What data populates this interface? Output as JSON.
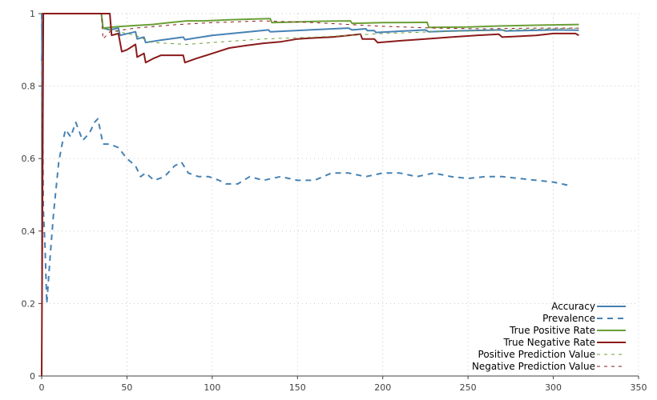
{
  "chart_data": {
    "type": "line",
    "title": "",
    "xlabel": "",
    "ylabel": "",
    "xlim": [
      0,
      350
    ],
    "ylim": [
      0,
      1
    ],
    "x_ticks": [
      "0",
      "50",
      "100",
      "150",
      "200",
      "250",
      "300",
      "350"
    ],
    "y_ticks": [
      "0",
      "0.2",
      "0.4",
      "0.6",
      "0.8",
      "1"
    ],
    "grid": true,
    "legend_position": "bottom-right",
    "series": [
      {
        "name": "Accuracy",
        "color": "#4682b4",
        "style": "solid",
        "points": [
          [
            0,
            0.87
          ],
          [
            1,
            1
          ],
          [
            35,
            1
          ],
          [
            36,
            0.96
          ],
          [
            40,
            0.955
          ],
          [
            45,
            0.96
          ],
          [
            46,
            0.94
          ],
          [
            55,
            0.95
          ],
          [
            56,
            0.93
          ],
          [
            60,
            0.935
          ],
          [
            61,
            0.92
          ],
          [
            70,
            0.927
          ],
          [
            83,
            0.935
          ],
          [
            84,
            0.928
          ],
          [
            100,
            0.94
          ],
          [
            133,
            0.955
          ],
          [
            134,
            0.95
          ],
          [
            180,
            0.96
          ],
          [
            182,
            0.955
          ],
          [
            190,
            0.958
          ],
          [
            191,
            0.953
          ],
          [
            195,
            0.953
          ],
          [
            196,
            0.948
          ],
          [
            225,
            0.955
          ],
          [
            227,
            0.95
          ],
          [
            240,
            0.952
          ],
          [
            270,
            0.955
          ],
          [
            272,
            0.952
          ],
          [
            300,
            0.955
          ],
          [
            315,
            0.954
          ]
        ]
      },
      {
        "name": "Prevalence",
        "color": "#4682b4",
        "style": "dashed",
        "points": [
          [
            0,
            1
          ],
          [
            1,
            0.46
          ],
          [
            2,
            0.35
          ],
          [
            3,
            0.2
          ],
          [
            5,
            0.33
          ],
          [
            7,
            0.45
          ],
          [
            10,
            0.59
          ],
          [
            12,
            0.64
          ],
          [
            14,
            0.68
          ],
          [
            17,
            0.66
          ],
          [
            20,
            0.7
          ],
          [
            24,
            0.65
          ],
          [
            28,
            0.67
          ],
          [
            31,
            0.7
          ],
          [
            33,
            0.71
          ],
          [
            36,
            0.64
          ],
          [
            40,
            0.64
          ],
          [
            45,
            0.63
          ],
          [
            50,
            0.6
          ],
          [
            55,
            0.58
          ],
          [
            58,
            0.55
          ],
          [
            61,
            0.56
          ],
          [
            66,
            0.54
          ],
          [
            72,
            0.55
          ],
          [
            78,
            0.58
          ],
          [
            82,
            0.59
          ],
          [
            86,
            0.56
          ],
          [
            92,
            0.55
          ],
          [
            98,
            0.55
          ],
          [
            104,
            0.54
          ],
          [
            108,
            0.53
          ],
          [
            115,
            0.53
          ],
          [
            122,
            0.55
          ],
          [
            130,
            0.54
          ],
          [
            140,
            0.55
          ],
          [
            150,
            0.54
          ],
          [
            160,
            0.54
          ],
          [
            170,
            0.56
          ],
          [
            180,
            0.56
          ],
          [
            190,
            0.55
          ],
          [
            200,
            0.56
          ],
          [
            210,
            0.56
          ],
          [
            220,
            0.55
          ],
          [
            230,
            0.56
          ],
          [
            240,
            0.55
          ],
          [
            250,
            0.545
          ],
          [
            260,
            0.55
          ],
          [
            270,
            0.55
          ],
          [
            280,
            0.545
          ],
          [
            290,
            0.54
          ],
          [
            300,
            0.535
          ],
          [
            310,
            0.525
          ]
        ]
      },
      {
        "name": "True Positive Rate",
        "color": "#6a9f35",
        "style": "solid",
        "points": [
          [
            0,
            1
          ],
          [
            1,
            1
          ],
          [
            35,
            1
          ],
          [
            36,
            0.96
          ],
          [
            40,
            0.962
          ],
          [
            45,
            0.964
          ],
          [
            55,
            0.967
          ],
          [
            65,
            0.97
          ],
          [
            75,
            0.975
          ],
          [
            85,
            0.98
          ],
          [
            95,
            0.98
          ],
          [
            110,
            0.983
          ],
          [
            125,
            0.985
          ],
          [
            134,
            0.986
          ],
          [
            135,
            0.975
          ],
          [
            150,
            0.977
          ],
          [
            165,
            0.979
          ],
          [
            181,
            0.98
          ],
          [
            182,
            0.973
          ],
          [
            200,
            0.975
          ],
          [
            226,
            0.976
          ],
          [
            227,
            0.962
          ],
          [
            250,
            0.963
          ],
          [
            270,
            0.966
          ],
          [
            290,
            0.968
          ],
          [
            315,
            0.97
          ]
        ]
      },
      {
        "name": "True Negative Rate",
        "color": "#8b1a1a",
        "style": "solid",
        "points": [
          [
            0,
            0
          ],
          [
            1,
            1
          ],
          [
            40,
            1
          ],
          [
            41,
            0.94
          ],
          [
            45,
            0.945
          ],
          [
            47,
            0.895
          ],
          [
            50,
            0.9
          ],
          [
            55,
            0.915
          ],
          [
            56,
            0.88
          ],
          [
            60,
            0.89
          ],
          [
            61,
            0.865
          ],
          [
            65,
            0.875
          ],
          [
            70,
            0.885
          ],
          [
            83,
            0.885
          ],
          [
            84,
            0.865
          ],
          [
            90,
            0.875
          ],
          [
            100,
            0.89
          ],
          [
            110,
            0.905
          ],
          [
            120,
            0.912
          ],
          [
            130,
            0.918
          ],
          [
            140,
            0.922
          ],
          [
            150,
            0.93
          ],
          [
            160,
            0.933
          ],
          [
            170,
            0.935
          ],
          [
            180,
            0.94
          ],
          [
            187,
            0.943
          ],
          [
            188,
            0.93
          ],
          [
            195,
            0.93
          ],
          [
            197,
            0.92
          ],
          [
            210,
            0.925
          ],
          [
            225,
            0.93
          ],
          [
            240,
            0.935
          ],
          [
            255,
            0.94
          ],
          [
            268,
            0.943
          ],
          [
            270,
            0.935
          ],
          [
            290,
            0.94
          ],
          [
            300,
            0.945
          ],
          [
            313,
            0.945
          ],
          [
            315,
            0.94
          ]
        ]
      },
      {
        "name": "Positive Prediction Value",
        "color": "#6a9f35",
        "style": "dashed",
        "points": [
          [
            0,
            1
          ],
          [
            1,
            1
          ],
          [
            35,
            1
          ],
          [
            36,
            0.96
          ],
          [
            40,
            0.955
          ],
          [
            55,
            0.94
          ],
          [
            65,
            0.92
          ],
          [
            85,
            0.915
          ],
          [
            100,
            0.92
          ],
          [
            130,
            0.93
          ],
          [
            160,
            0.935
          ],
          [
            180,
            0.94
          ],
          [
            200,
            0.945
          ],
          [
            230,
            0.95
          ],
          [
            260,
            0.953
          ],
          [
            290,
            0.957
          ],
          [
            315,
            0.96
          ]
        ]
      },
      {
        "name": "Negative Prediction Value",
        "color": "#8b1a1a",
        "style": "dashed",
        "points": [
          [
            0,
            1
          ],
          [
            1,
            1
          ],
          [
            35,
            1
          ],
          [
            36,
            0.93
          ],
          [
            40,
            0.95
          ],
          [
            55,
            0.96
          ],
          [
            80,
            0.97
          ],
          [
            100,
            0.975
          ],
          [
            130,
            0.98
          ],
          [
            160,
            0.975
          ],
          [
            180,
            0.97
          ],
          [
            200,
            0.965
          ],
          [
            230,
            0.96
          ],
          [
            260,
            0.958
          ],
          [
            290,
            0.96
          ],
          [
            315,
            0.96
          ]
        ]
      }
    ]
  }
}
